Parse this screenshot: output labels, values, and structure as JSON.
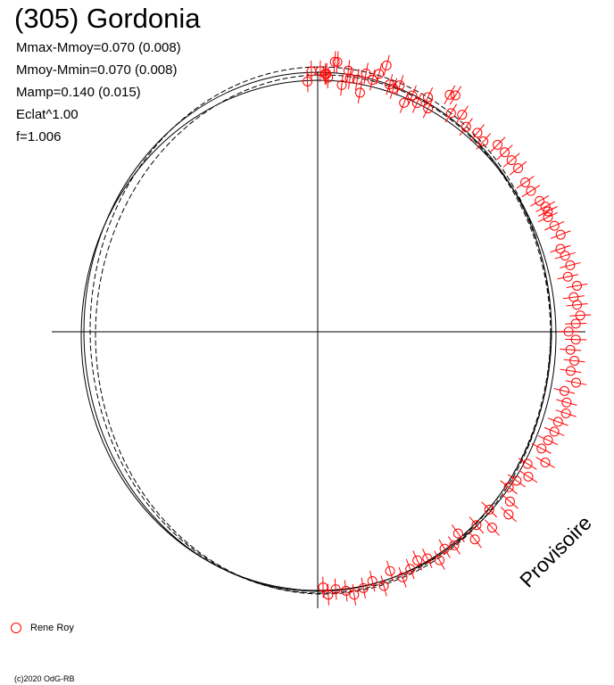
{
  "title": "(305) Gordonia",
  "stats": [
    "Mmax-Mmoy=0.070 (0.008)",
    "Mmoy-Mmin=0.070 (0.008)",
    "Mamp=0.140 (0.015)",
    "Eclat^1.00",
    "f=1.006"
  ],
  "watermark": "Provisoire",
  "legend": {
    "label": "Rene Roy",
    "color": "#ff0000"
  },
  "copyright": "(c)2020 OdG-RB",
  "chart_data": {
    "type": "scatter",
    "title": "(305) Gordonia",
    "coordinate_system": "polar (phase angle, clockwise from top; radius = relative magnitude)",
    "axes": "cross-hair through centre",
    "model_curves": 3,
    "series": [
      {
        "name": "Rene Roy",
        "color": "#ff0000",
        "marker": "open circle with error bar",
        "points_polar": [
          [
            0.042,
            1.015
          ],
          [
            0.035,
            1.03
          ],
          [
            0.03,
            1.03
          ],
          [
            -0.042,
            1.0
          ],
          [
            -0.025,
            1.04
          ],
          [
            0.01,
            1.04
          ],
          [
            0.075,
            1.08
          ],
          [
            0.065,
            1.08
          ],
          [
            0.1,
            0.99
          ],
          [
            0.12,
            1.05
          ],
          [
            0.13,
            1.02
          ],
          [
            0.16,
            1.02
          ],
          [
            0.18,
            0.97
          ],
          [
            0.19,
            1.05
          ],
          [
            0.22,
            1.03
          ],
          [
            0.24,
            1.06
          ],
          [
            0.26,
            1.1
          ],
          [
            0.29,
            1.03
          ],
          [
            0.31,
            1.02
          ],
          [
            0.33,
            1.04
          ],
          [
            0.37,
            0.98
          ],
          [
            0.39,
            1.02
          ],
          [
            0.42,
            1.0
          ],
          [
            0.45,
            1.04
          ],
          [
            0.47,
            1.0
          ],
          [
            0.52,
            1.09
          ],
          [
            0.54,
            1.1
          ],
          [
            0.56,
            1.03
          ],
          [
            0.6,
            1.05
          ],
          [
            0.64,
            1.02
          ],
          [
            0.69,
            1.03
          ],
          [
            0.73,
            1.02
          ],
          [
            0.78,
            1.05
          ],
          [
            0.82,
            1.05
          ],
          [
            0.86,
            1.05
          ],
          [
            0.9,
            1.05
          ],
          [
            0.96,
            1.04
          ],
          [
            1.0,
            1.04
          ],
          [
            1.05,
            1.05
          ],
          [
            1.08,
            1.06
          ],
          [
            1.1,
            1.06
          ],
          [
            1.12,
            1.05
          ],
          [
            1.16,
            1.06
          ],
          [
            1.2,
            1.07
          ],
          [
            1.25,
            1.05
          ],
          [
            1.28,
            1.06
          ],
          [
            1.32,
            1.07
          ],
          [
            1.36,
            1.05
          ],
          [
            1.4,
            1.08
          ],
          [
            1.44,
            1.06
          ],
          [
            1.47,
            1.07
          ],
          [
            1.51,
            1.08
          ],
          [
            1.54,
            1.06
          ],
          [
            1.57,
            1.03
          ],
          [
            1.6,
            1.06
          ],
          [
            1.64,
            1.04
          ],
          [
            1.68,
            1.06
          ],
          [
            1.72,
            1.05
          ],
          [
            1.76,
            1.08
          ],
          [
            1.8,
            1.04
          ],
          [
            1.84,
            1.06
          ],
          [
            1.88,
            1.07
          ],
          [
            1.92,
            1.05
          ],
          [
            1.96,
            1.05
          ],
          [
            2.0,
            1.04
          ],
          [
            2.04,
            1.03
          ],
          [
            2.08,
            1.07
          ],
          [
            2.12,
            1.01
          ],
          [
            2.16,
            1.04
          ],
          [
            2.2,
            1.01
          ],
          [
            2.24,
            1.0
          ],
          [
            2.28,
            1.04
          ],
          [
            2.32,
            1.07
          ],
          [
            2.36,
            1.0
          ],
          [
            2.4,
            1.06
          ],
          [
            2.44,
            1.01
          ],
          [
            2.48,
            1.05
          ],
          [
            2.52,
            0.99
          ],
          [
            2.56,
            1.02
          ],
          [
            2.6,
            1.01
          ],
          [
            2.64,
            1.04
          ],
          [
            2.68,
            1.01
          ],
          [
            2.72,
            1.0
          ],
          [
            2.76,
            1.02
          ],
          [
            2.8,
            1.04
          ],
          [
            2.84,
            1.0
          ],
          [
            2.88,
            1.05
          ],
          [
            2.92,
            1.02
          ],
          [
            2.96,
            1.04
          ],
          [
            3.0,
            1.06
          ],
          [
            3.03,
            1.04
          ],
          [
            3.07,
            1.03
          ],
          [
            3.1,
            1.05
          ],
          [
            3.12,
            1.02
          ]
        ]
      }
    ]
  }
}
